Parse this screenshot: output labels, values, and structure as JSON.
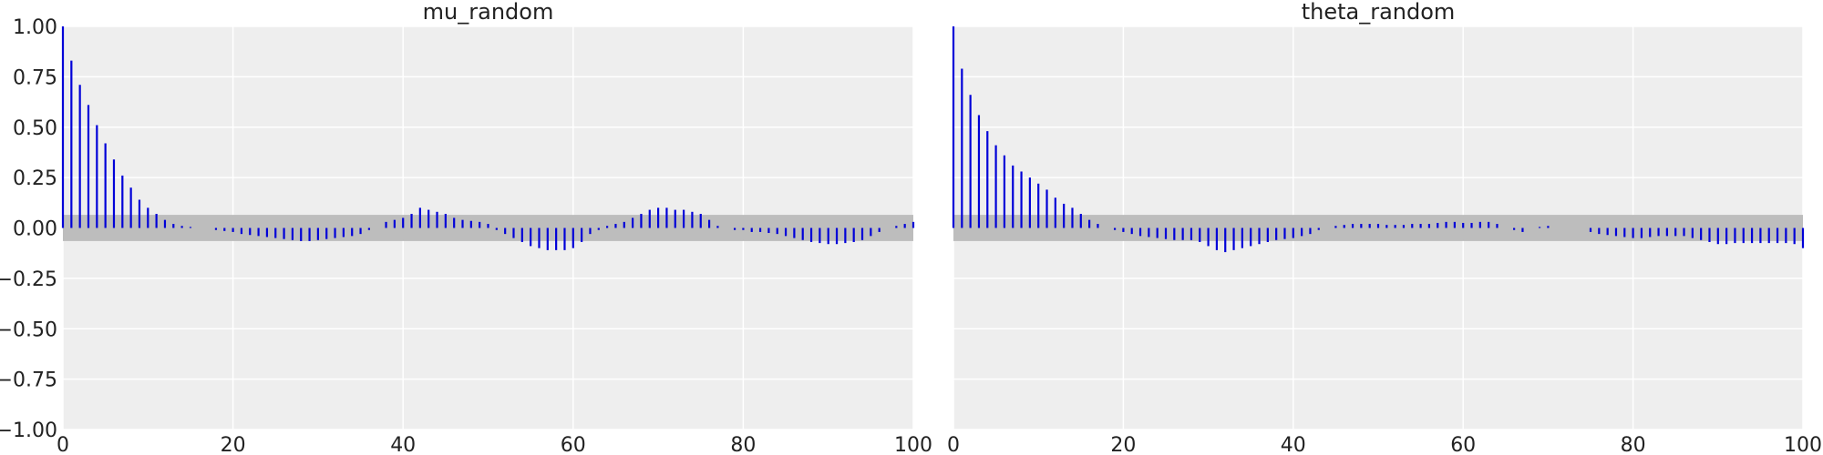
{
  "chart_data": [
    {
      "type": "bar",
      "title": "mu_random",
      "xlabel": "",
      "ylabel": "",
      "xlim": [
        0,
        100
      ],
      "ylim": [
        -1,
        1
      ],
      "xticks": [
        0,
        20,
        40,
        60,
        80,
        100
      ],
      "yticks": [
        -1.0,
        -0.75,
        -0.5,
        -0.25,
        0.0,
        0.25,
        0.5,
        0.75,
        1.0
      ],
      "ytick_labels": [
        "−1.00",
        "−0.75",
        "−0.50",
        "−0.25",
        "0.00",
        "0.25",
        "0.50",
        "0.75",
        "1.00"
      ],
      "xtick_labels": [
        "0",
        "20",
        "40",
        "60",
        "80",
        "100"
      ],
      "confidence_band": [
        -0.065,
        0.065
      ],
      "grid": true,
      "values": [
        1.0,
        0.83,
        0.71,
        0.61,
        0.51,
        0.42,
        0.34,
        0.26,
        0.2,
        0.14,
        0.1,
        0.07,
        0.04,
        0.02,
        0.01,
        0.005,
        0.0,
        0.0,
        -0.01,
        -0.015,
        -0.02,
        -0.03,
        -0.035,
        -0.04,
        -0.045,
        -0.05,
        -0.055,
        -0.06,
        -0.065,
        -0.065,
        -0.06,
        -0.055,
        -0.05,
        -0.045,
        -0.04,
        -0.03,
        -0.01,
        0.0,
        0.03,
        0.04,
        0.05,
        0.07,
        0.1,
        0.09,
        0.08,
        0.07,
        0.05,
        0.04,
        0.035,
        0.03,
        0.02,
        -0.01,
        -0.03,
        -0.05,
        -0.07,
        -0.09,
        -0.1,
        -0.11,
        -0.11,
        -0.11,
        -0.1,
        -0.07,
        -0.03,
        -0.01,
        0.01,
        0.02,
        0.03,
        0.05,
        0.07,
        0.09,
        0.1,
        0.1,
        0.09,
        0.09,
        0.08,
        0.07,
        0.04,
        0.01,
        0.0,
        -0.01,
        -0.01,
        -0.02,
        -0.02,
        -0.025,
        -0.03,
        -0.04,
        -0.05,
        -0.06,
        -0.07,
        -0.075,
        -0.08,
        -0.08,
        -0.075,
        -0.07,
        -0.06,
        -0.04,
        -0.02,
        0.0,
        0.01,
        0.02,
        0.03
      ]
    },
    {
      "type": "bar",
      "title": "theta_random",
      "xlabel": "",
      "ylabel": "",
      "xlim": [
        0,
        100
      ],
      "ylim": [
        -1,
        1
      ],
      "xticks": [
        0,
        20,
        40,
        60,
        80,
        100
      ],
      "xtick_labels": [
        "0",
        "20",
        "40",
        "60",
        "80",
        "100"
      ],
      "confidence_band": [
        -0.065,
        0.065
      ],
      "grid": true,
      "values": [
        1.0,
        0.79,
        0.66,
        0.56,
        0.48,
        0.41,
        0.36,
        0.31,
        0.28,
        0.25,
        0.22,
        0.19,
        0.15,
        0.12,
        0.1,
        0.07,
        0.04,
        0.02,
        0.0,
        -0.01,
        -0.02,
        -0.03,
        -0.04,
        -0.045,
        -0.05,
        -0.055,
        -0.06,
        -0.06,
        -0.06,
        -0.07,
        -0.09,
        -0.11,
        -0.12,
        -0.11,
        -0.1,
        -0.09,
        -0.08,
        -0.07,
        -0.06,
        -0.055,
        -0.05,
        -0.04,
        -0.03,
        -0.01,
        0.0,
        0.01,
        0.015,
        0.02,
        0.02,
        0.02,
        0.02,
        0.015,
        0.015,
        0.015,
        0.02,
        0.02,
        0.02,
        0.025,
        0.03,
        0.03,
        0.025,
        0.025,
        0.03,
        0.03,
        0.02,
        0.0,
        -0.01,
        -0.02,
        0.0,
        0.005,
        0.01,
        0.0,
        0.0,
        0.0,
        0.0,
        -0.02,
        -0.03,
        -0.035,
        -0.04,
        -0.045,
        -0.05,
        -0.05,
        -0.045,
        -0.04,
        -0.04,
        -0.04,
        -0.04,
        -0.05,
        -0.06,
        -0.07,
        -0.08,
        -0.08,
        -0.075,
        -0.075,
        -0.075,
        -0.075,
        -0.075,
        -0.075,
        -0.075,
        -0.08,
        -0.1
      ]
    }
  ]
}
